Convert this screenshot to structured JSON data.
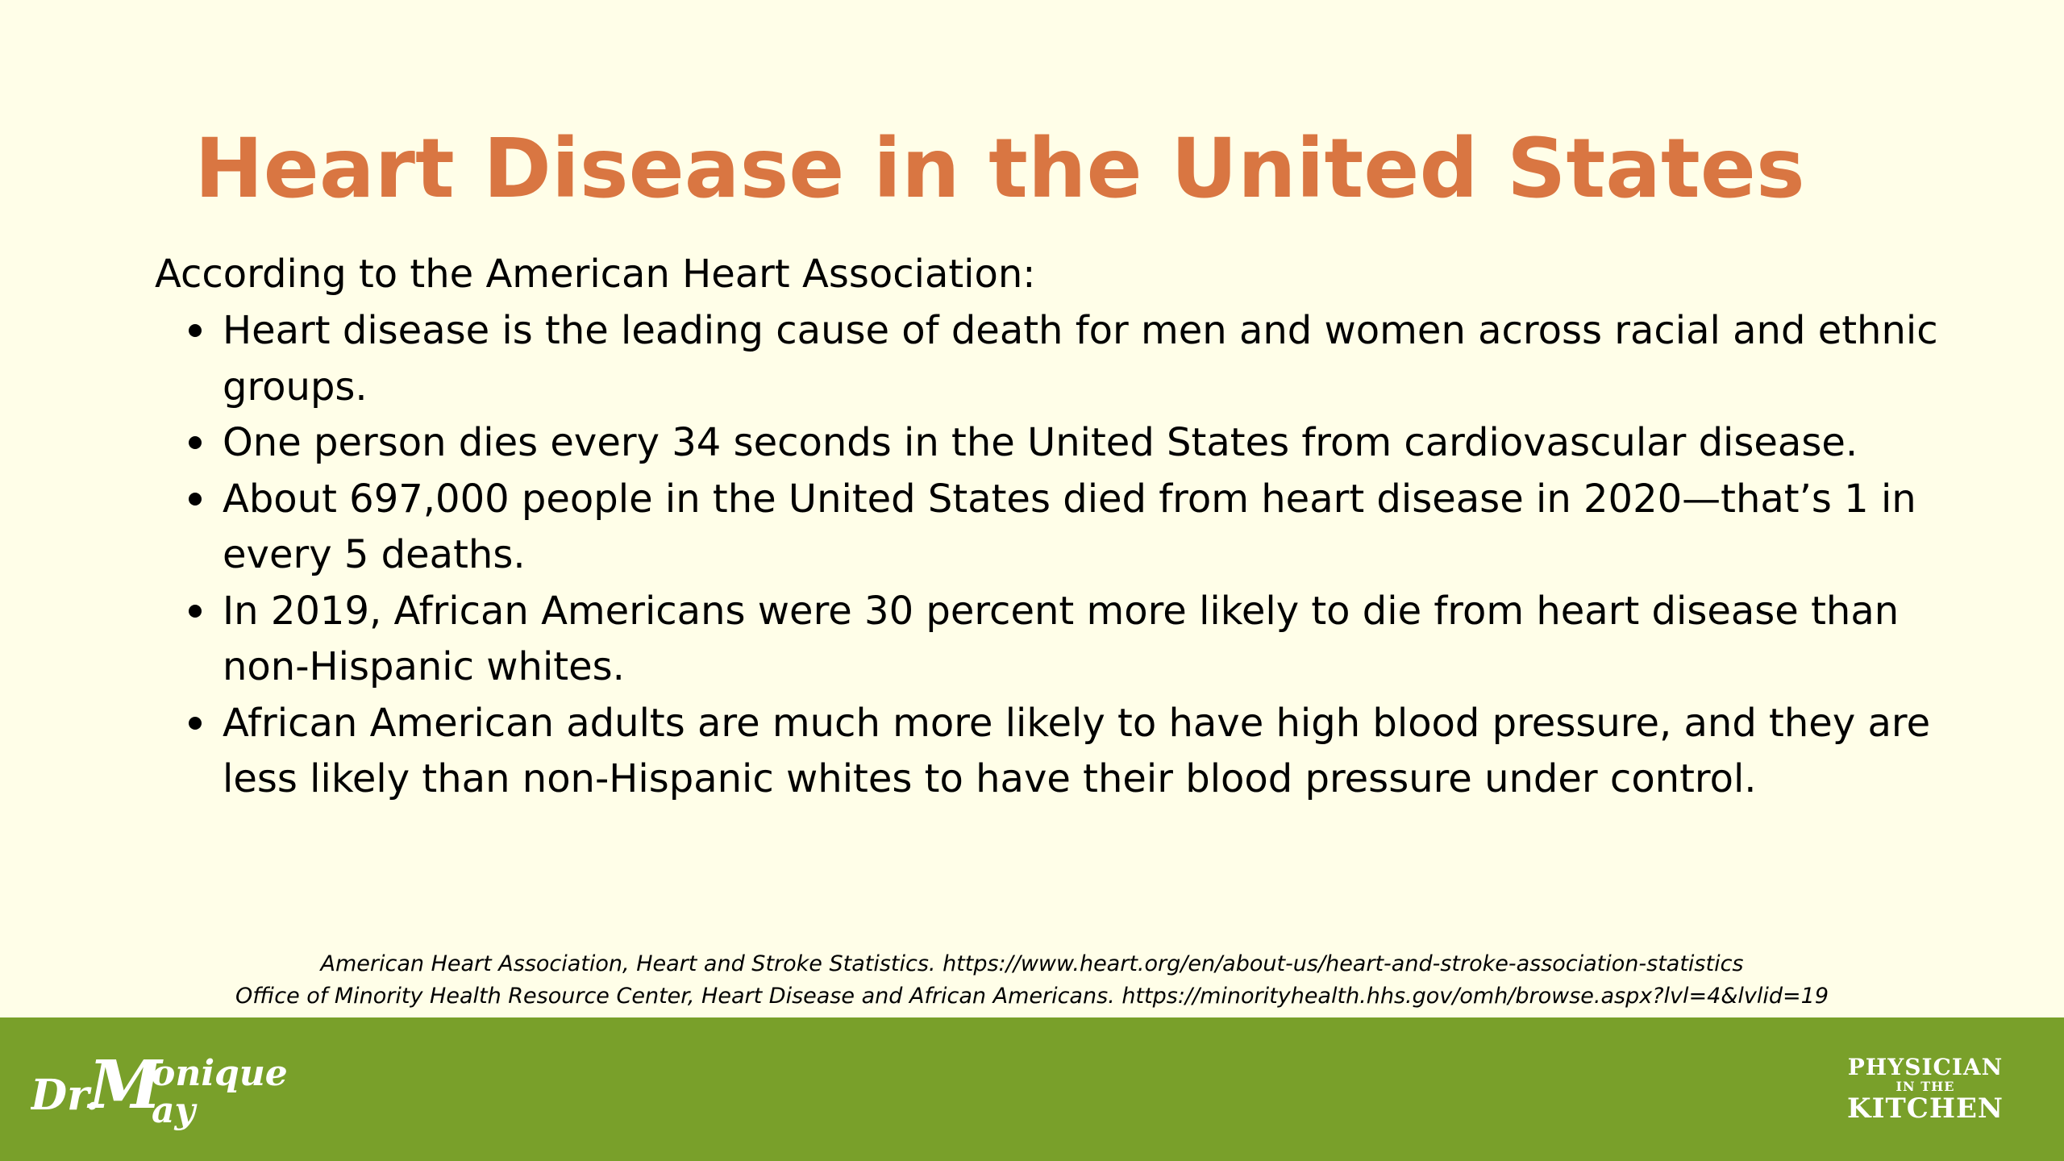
{
  "slide": {
    "title": "Heart Disease in the United States",
    "intro": "According to the American Heart Association:",
    "bullets": [
      "Heart disease is the leading cause of death for men and women across racial and ethnic groups.",
      "One person dies every 34 seconds in the United States from cardiovascular disease.",
      "About 697,000 people in the United States died from heart disease in 2020—that’s 1 in every 5 deaths.",
      "In 2019, African Americans were 30 percent more likely to die from heart disease than non-Hispanic whites.",
      "African American adults are much more likely to have high blood pressure, and they are less likely than non-Hispanic whites to have their blood pressure under control."
    ],
    "sources": [
      "American Heart Association, Heart and Stroke Statistics. https://www.heart.org/en/about-us/heart-and-stroke-association-statistics",
      "Office of Minority Health Resource Center, Heart Disease and African Americans. https://minorityhealth.hhs.gov/omh/browse.aspx?lvl=4&lvlid=19"
    ]
  },
  "footer": {
    "logo_left": {
      "text": "Dr. Monique May"
    },
    "logo_right": {
      "line1": "PHYSICIAN",
      "line2": "IN THE",
      "line3": "KITCHEN"
    }
  },
  "colors": {
    "background": "#fffee8",
    "title": "#d97642",
    "footer": "#79a02a",
    "text": "#000000",
    "logo": "#ffffff"
  }
}
